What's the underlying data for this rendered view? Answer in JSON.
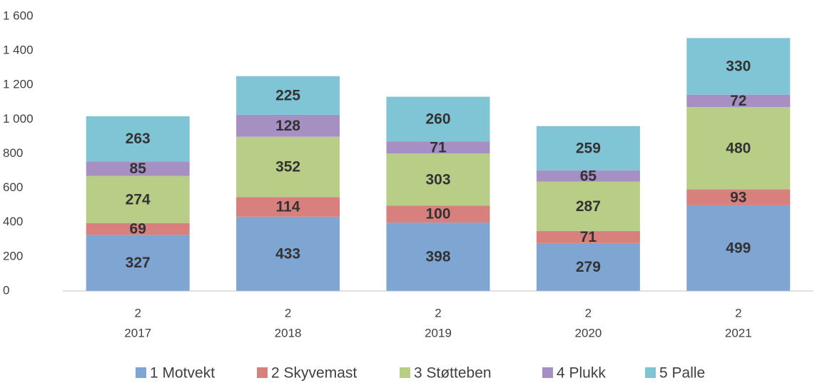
{
  "chart_data": {
    "type": "stacked_bar",
    "categories": [
      [
        "2",
        "2017"
      ],
      [
        "2",
        "2018"
      ],
      [
        "2",
        "2019"
      ],
      [
        "2",
        "2020"
      ],
      [
        "2",
        "2021"
      ]
    ],
    "series": [
      {
        "name": "1 Motvekt",
        "color": "#7fa5d3",
        "values": [
          327,
          433,
          398,
          279,
          499
        ]
      },
      {
        "name": "2 Skyvemast",
        "color": "#d8807e",
        "values": [
          69,
          114,
          100,
          71,
          93
        ]
      },
      {
        "name": "3 Støtteben",
        "color": "#b8ce87",
        "values": [
          274,
          352,
          303,
          287,
          480
        ]
      },
      {
        "name": "4 Plukk",
        "color": "#a690c3",
        "values": [
          85,
          128,
          71,
          65,
          72
        ]
      },
      {
        "name": "5 Palle",
        "color": "#7fc5d6",
        "values": [
          263,
          225,
          260,
          259,
          330
        ]
      }
    ],
    "ylim": [
      0,
      1600
    ],
    "yticks": [
      0,
      200,
      400,
      600,
      800,
      {
        "value": 1000,
        "label": "1 000"
      },
      {
        "value": 1200,
        "label": "1 200"
      },
      {
        "value": 1400,
        "label": "1 400"
      },
      {
        "value": 1600,
        "label": "1 600"
      }
    ],
    "grid": false,
    "legend": "bottom"
  }
}
